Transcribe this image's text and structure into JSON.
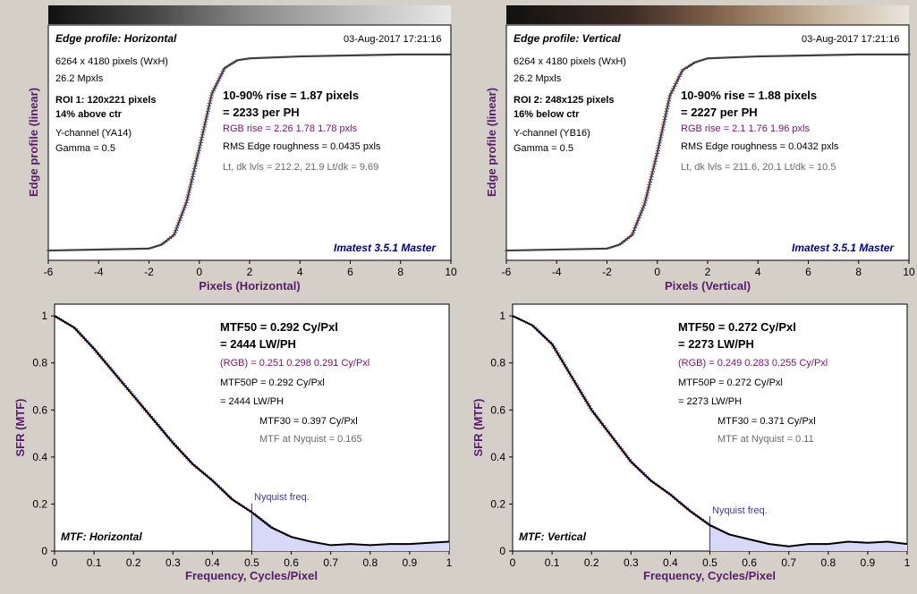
{
  "panels": [
    {
      "id": "edge_h",
      "title": "Edge profile: Horizontal",
      "timestamp": "03-Aug-2017 17:21:16",
      "info": [
        "6264 x 4180 pixels (WxH)",
        "26.2 Mpxls"
      ],
      "roi": [
        "ROI 1:  120x221 pixels",
        "14% above ctr"
      ],
      "channel": [
        "Y-channel  (YA14)",
        "Gamma = 0.5"
      ],
      "rise": [
        "10-90% rise = 1.87 pixels",
        "= 2233 per PH"
      ],
      "rgb_rise": "RGB rise = 2.26  1.78  1.78 pxls",
      "roughness": "RMS Edge roughness = 0.0435 pxls",
      "levels": "Lt, dk lvls = 212.2, 21.9   Lt/dk = 9.69",
      "brand": "Imatest 3.5.1 Master",
      "xlabel": "Pixels (Horizontal)",
      "ylabel": "Edge profile (linear)"
    },
    {
      "id": "edge_v",
      "title": "Edge profile: Vertical",
      "timestamp": "03-Aug-2017 17:21:16",
      "info": [
        "6264 x 4180 pixels (WxH)",
        "26.2 Mpxls"
      ],
      "roi": [
        "ROI 2:  248x125 pixels",
        "16% below ctr"
      ],
      "channel": [
        "Y-channel  (YB16)",
        "Gamma = 0.5"
      ],
      "rise": [
        "10-90% rise = 1.88 pixels",
        "= 2227 per PH"
      ],
      "rgb_rise": "RGB rise = 2.1  1.76  1.96 pxls",
      "roughness": "RMS Edge roughness = 0.0432 pxls",
      "levels": "Lt, dk lvls = 211.6, 20.1   Lt/dk = 10.5",
      "brand": "Imatest 3.5.1 Master",
      "xlabel": "Pixels (Vertical)",
      "ylabel": "Edge profile (linear)"
    },
    {
      "id": "mtf_h",
      "title": "MTF: Horizontal",
      "mtf50": [
        "MTF50 = 0.292 Cy/Pxl",
        "= 2444 LW/PH"
      ],
      "rgb": "(RGB) = 0.251  0.298  0.291 Cy/Pxl",
      "mtf50p": [
        "MTF50P = 0.292 Cy/Pxl",
        "= 2444 LW/PH"
      ],
      "mtf30": "MTF30 = 0.397 Cy/Pxl",
      "nyq": "MTF at Nyquist = 0.165",
      "nyq_label": "Nyquist freq.",
      "xlabel": "Frequency, Cycles/Pixel",
      "ylabel": "SFR (MTF)"
    },
    {
      "id": "mtf_v",
      "title": "MTF: Vertical",
      "mtf50": [
        "MTF50 = 0.272 Cy/Pxl",
        "= 2273 LW/PH"
      ],
      "rgb": "(RGB) = 0.249  0.283  0.255 Cy/Pxl",
      "mtf50p": [
        "MTF50P = 0.272 Cy/Pxl",
        "= 2273 LW/PH"
      ],
      "mtf30": "MTF30 = 0.371 Cy/Pxl",
      "nyq": "MTF at Nyquist = 0.11",
      "nyq_label": "Nyquist freq.",
      "xlabel": "Frequency, Cycles/Pixel",
      "ylabel": "SFR (MTF)"
    }
  ],
  "chart_data": [
    {
      "type": "line",
      "title": "Edge profile: Horizontal",
      "xlabel": "Pixels (Horizontal)",
      "ylabel": "Edge profile (linear)",
      "xlim": [
        -6,
        10
      ],
      "xticks": [
        -6,
        -4,
        -2,
        0,
        2,
        4,
        6,
        8,
        10
      ],
      "series": [
        {
          "x": [
            -6,
            -2,
            -1.5,
            -1,
            -0.5,
            0,
            0.5,
            1,
            1.5,
            2,
            4,
            6,
            8,
            10
          ],
          "y": [
            0.0,
            0.01,
            0.03,
            0.08,
            0.25,
            0.52,
            0.8,
            0.93,
            0.97,
            0.98,
            0.99,
            0.995,
            1.0,
            1.0
          ]
        }
      ]
    },
    {
      "type": "line",
      "title": "Edge profile: Vertical",
      "xlabel": "Pixels (Vertical)",
      "ylabel": "Edge profile (linear)",
      "xlim": [
        -6,
        10
      ],
      "xticks": [
        -6,
        -4,
        -2,
        0,
        2,
        4,
        6,
        8,
        10
      ],
      "series": [
        {
          "x": [
            -6,
            -2,
            -1.5,
            -1,
            -0.5,
            0,
            0.5,
            1,
            1.5,
            2,
            4,
            6,
            8,
            10
          ],
          "y": [
            0.0,
            0.01,
            0.03,
            0.08,
            0.24,
            0.5,
            0.79,
            0.92,
            0.96,
            0.98,
            0.99,
            0.995,
            1.0,
            1.0
          ]
        }
      ]
    },
    {
      "type": "line",
      "title": "MTF: Horizontal",
      "xlabel": "Frequency, Cycles/Pixel",
      "ylabel": "SFR (MTF)",
      "xlim": [
        0,
        1
      ],
      "ylim": [
        0,
        1.05
      ],
      "xticks": [
        0,
        0.1,
        0.2,
        0.3,
        0.4,
        0.5,
        0.6,
        0.7,
        0.8,
        0.9,
        1
      ],
      "yticks": [
        0,
        0.2,
        0.4,
        0.6,
        0.8,
        1
      ],
      "series": [
        {
          "x": [
            0,
            0.05,
            0.1,
            0.15,
            0.2,
            0.25,
            0.3,
            0.35,
            0.4,
            0.45,
            0.5,
            0.55,
            0.6,
            0.65,
            0.7,
            0.75,
            0.8,
            0.85,
            0.9,
            0.95,
            1.0
          ],
          "y": [
            1.0,
            0.95,
            0.86,
            0.76,
            0.66,
            0.56,
            0.46,
            0.37,
            0.3,
            0.22,
            0.165,
            0.1,
            0.06,
            0.04,
            0.025,
            0.03,
            0.025,
            0.03,
            0.03,
            0.035,
            0.04
          ]
        }
      ],
      "annotations": [
        "Nyquist freq."
      ]
    },
    {
      "type": "line",
      "title": "MTF: Vertical",
      "xlabel": "Frequency, Cycles/Pixel",
      "ylabel": "SFR (MTF)",
      "xlim": [
        0,
        1
      ],
      "ylim": [
        0,
        1.05
      ],
      "xticks": [
        0,
        0.1,
        0.2,
        0.3,
        0.4,
        0.5,
        0.6,
        0.7,
        0.8,
        0.9,
        1
      ],
      "yticks": [
        0,
        0.2,
        0.4,
        0.6,
        0.8,
        1
      ],
      "series": [
        {
          "x": [
            0,
            0.05,
            0.1,
            0.15,
            0.2,
            0.25,
            0.3,
            0.35,
            0.4,
            0.45,
            0.5,
            0.55,
            0.6,
            0.65,
            0.7,
            0.75,
            0.8,
            0.85,
            0.9,
            0.95,
            1.0
          ],
          "y": [
            1.0,
            0.96,
            0.88,
            0.74,
            0.6,
            0.49,
            0.38,
            0.3,
            0.24,
            0.17,
            0.11,
            0.07,
            0.05,
            0.03,
            0.02,
            0.03,
            0.03,
            0.04,
            0.035,
            0.04,
            0.03
          ]
        }
      ],
      "annotations": [
        "Nyquist freq."
      ]
    }
  ]
}
